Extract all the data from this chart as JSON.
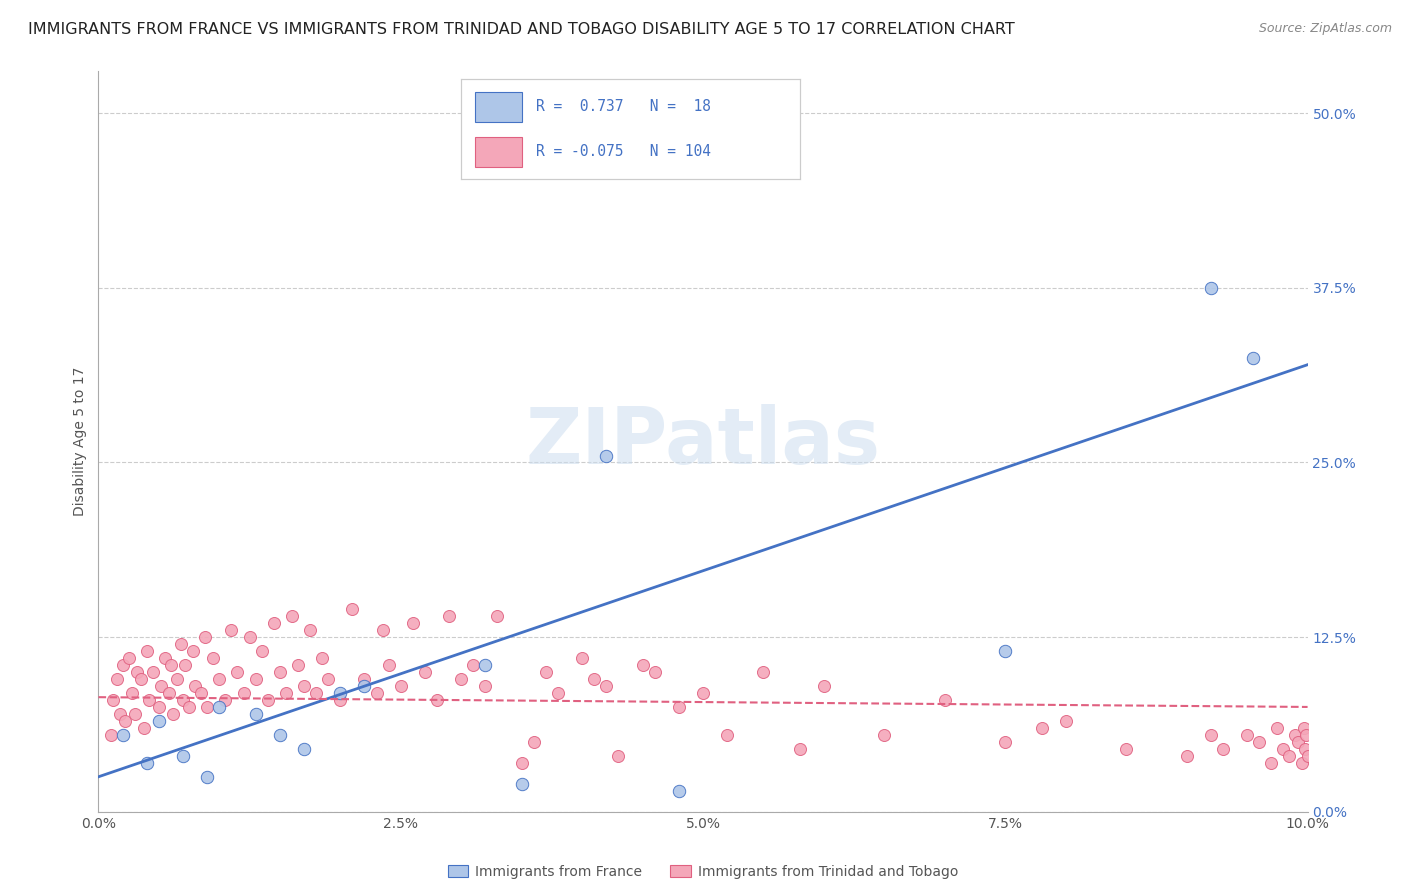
{
  "title": "IMMIGRANTS FROM FRANCE VS IMMIGRANTS FROM TRINIDAD AND TOBAGO DISABILITY AGE 5 TO 17 CORRELATION CHART",
  "source": "Source: ZipAtlas.com",
  "ylabel": "Disability Age 5 to 17",
  "xlim": [
    0.0,
    10.0
  ],
  "ylim": [
    0.0,
    53.0
  ],
  "xticks": [
    0.0,
    2.5,
    5.0,
    7.5,
    10.0
  ],
  "yticks": [
    0.0,
    12.5,
    25.0,
    37.5,
    50.0
  ],
  "legend1_label": "Immigrants from France",
  "legend2_label": "Immigrants from Trinidad and Tobago",
  "r1": 0.737,
  "n1": 18,
  "r2": -0.075,
  "n2": 104,
  "color_blue": "#aec6e8",
  "color_pink": "#f4a7b9",
  "line_blue": "#4472c4",
  "line_pink": "#e06080",
  "title_fontsize": 11.5,
  "axis_fontsize": 10,
  "tick_fontsize": 10,
  "watermark": "ZIPatlas",
  "blue_points_x": [
    0.2,
    0.4,
    0.5,
    0.7,
    0.9,
    1.0,
    1.3,
    1.5,
    1.7,
    2.0,
    2.2,
    3.2,
    3.5,
    4.2,
    4.8,
    7.5,
    9.2,
    9.55
  ],
  "blue_points_y": [
    5.5,
    3.5,
    6.5,
    4.0,
    2.5,
    7.5,
    7.0,
    5.5,
    4.5,
    8.5,
    9.0,
    10.5,
    2.0,
    25.5,
    1.5,
    11.5,
    37.5,
    32.5
  ],
  "blue_line_x0": 0.0,
  "blue_line_y0": 2.5,
  "blue_line_x1": 10.0,
  "blue_line_y1": 32.0,
  "pink_line_x0": 0.0,
  "pink_line_y0": 8.2,
  "pink_line_x1": 10.0,
  "pink_line_y1": 7.5,
  "pink_points_x": [
    0.1,
    0.12,
    0.15,
    0.18,
    0.2,
    0.22,
    0.25,
    0.28,
    0.3,
    0.32,
    0.35,
    0.38,
    0.4,
    0.42,
    0.45,
    0.5,
    0.52,
    0.55,
    0.58,
    0.6,
    0.62,
    0.65,
    0.68,
    0.7,
    0.72,
    0.75,
    0.78,
    0.8,
    0.85,
    0.88,
    0.9,
    0.95,
    1.0,
    1.05,
    1.1,
    1.15,
    1.2,
    1.25,
    1.3,
    1.35,
    1.4,
    1.45,
    1.5,
    1.55,
    1.6,
    1.65,
    1.7,
    1.75,
    1.8,
    1.85,
    1.9,
    2.0,
    2.1,
    2.2,
    2.3,
    2.35,
    2.4,
    2.5,
    2.6,
    2.7,
    2.8,
    2.9,
    3.0,
    3.1,
    3.2,
    3.3,
    3.5,
    3.6,
    3.7,
    3.8,
    4.0,
    4.1,
    4.2,
    4.3,
    4.5,
    4.6,
    4.8,
    5.0,
    5.2,
    5.5,
    5.8,
    6.0,
    6.5,
    7.0,
    7.5,
    7.8,
    8.0,
    8.5,
    9.0,
    9.2,
    9.3,
    9.5,
    9.6,
    9.7,
    9.75,
    9.8,
    9.85,
    9.9,
    9.92,
    9.95,
    9.97,
    9.98,
    9.99,
    10.0
  ],
  "pink_points_y": [
    5.5,
    8.0,
    9.5,
    7.0,
    10.5,
    6.5,
    11.0,
    8.5,
    7.0,
    10.0,
    9.5,
    6.0,
    11.5,
    8.0,
    10.0,
    7.5,
    9.0,
    11.0,
    8.5,
    10.5,
    7.0,
    9.5,
    12.0,
    8.0,
    10.5,
    7.5,
    11.5,
    9.0,
    8.5,
    12.5,
    7.5,
    11.0,
    9.5,
    8.0,
    13.0,
    10.0,
    8.5,
    12.5,
    9.5,
    11.5,
    8.0,
    13.5,
    10.0,
    8.5,
    14.0,
    10.5,
    9.0,
    13.0,
    8.5,
    11.0,
    9.5,
    8.0,
    14.5,
    9.5,
    8.5,
    13.0,
    10.5,
    9.0,
    13.5,
    10.0,
    8.0,
    14.0,
    9.5,
    10.5,
    9.0,
    14.0,
    3.5,
    5.0,
    10.0,
    8.5,
    11.0,
    9.5,
    9.0,
    4.0,
    10.5,
    10.0,
    7.5,
    8.5,
    5.5,
    10.0,
    4.5,
    9.0,
    5.5,
    8.0,
    5.0,
    6.0,
    6.5,
    4.5,
    4.0,
    5.5,
    4.5,
    5.5,
    5.0,
    3.5,
    6.0,
    4.5,
    4.0,
    5.5,
    5.0,
    3.5,
    6.0,
    4.5,
    5.5,
    4.0
  ]
}
